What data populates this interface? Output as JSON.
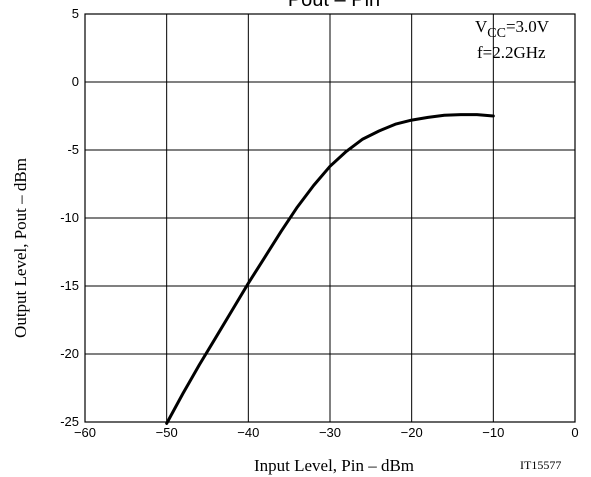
{
  "chart_data": {
    "type": "line",
    "title": "Pout – Pin",
    "xlabel": "Input Level, Pin  –  dBm",
    "ylabel": "Output Level, Pout  –  dBm",
    "xlim": [
      -60,
      0
    ],
    "ylim": [
      -25,
      5
    ],
    "xticks": [
      -60,
      -50,
      -40,
      -30,
      -20,
      -10,
      0
    ],
    "yticks": [
      5,
      0,
      -5,
      -10,
      -15,
      -20,
      -25
    ],
    "xtick_labels": [
      "−60",
      "−50",
      "−40",
      "−30",
      "−20",
      "−10",
      "0"
    ],
    "ytick_labels": [
      "5",
      "0",
      "-5",
      "-10",
      "-15",
      "-20",
      "-25"
    ],
    "grid": true,
    "annotations": {
      "vcc_prefix": "V",
      "vcc_sub": "CC",
      "vcc_value": "=3.0V",
      "freq": "f=2.2GHz",
      "figure_id": "IT15577"
    },
    "series": [
      {
        "x": [
          -50,
          -48,
          -46,
          -44,
          -42,
          -40,
          -38,
          -36,
          -34,
          -32,
          -30,
          -28,
          -26,
          -24,
          -22,
          -20,
          -18,
          -16,
          -14,
          -12,
          -10
        ],
        "y": [
          -25.1,
          -22.9,
          -20.8,
          -18.8,
          -16.8,
          -14.8,
          -12.9,
          -11.0,
          -9.2,
          -7.6,
          -6.2,
          -5.1,
          -4.2,
          -3.6,
          -3.1,
          -2.8,
          -2.6,
          -2.45,
          -2.4,
          -2.4,
          -2.5
        ],
        "color": "#000000"
      }
    ]
  }
}
